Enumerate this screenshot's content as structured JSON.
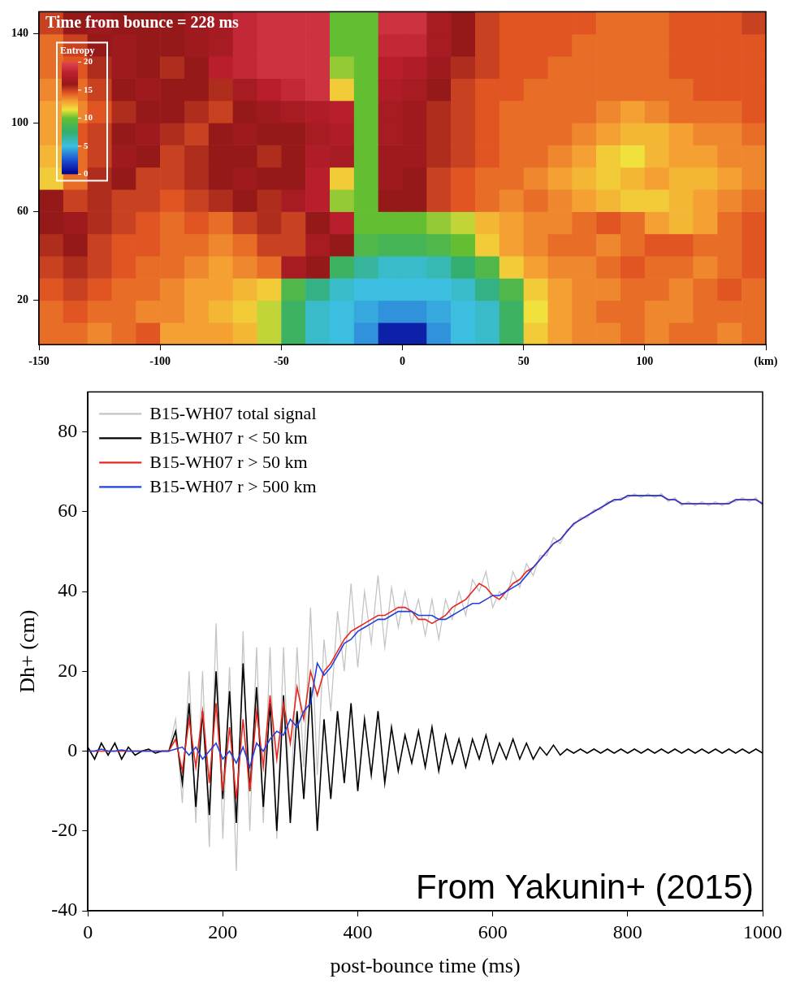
{
  "chart_data": [
    {
      "type": "heatmap",
      "annotations": [
        "Time from bounce = 228 ms"
      ],
      "xlim": [
        -150,
        150
      ],
      "xticks": [
        -150,
        -100,
        -50,
        0,
        50,
        100,
        {
          "value": 150,
          "label": "(km)"
        }
      ],
      "ylim": [
        0,
        150
      ],
      "yticks": [
        20,
        60,
        100,
        140
      ],
      "grid": false,
      "x_edges": [
        -150,
        -140,
        -130,
        -120,
        -110,
        -100,
        -90,
        -80,
        -70,
        -60,
        -50,
        -40,
        -30,
        -20,
        -10,
        0,
        10,
        20,
        30,
        40,
        50,
        60,
        70,
        80,
        90,
        100,
        110,
        120,
        130,
        140,
        150
      ],
      "y_edges": [
        0,
        10,
        20,
        30,
        40,
        50,
        60,
        70,
        80,
        90,
        100,
        110,
        120,
        130,
        140,
        150
      ],
      "cells": [
        [
          14,
          14,
          13.5,
          14,
          14.5,
          13,
          13,
          13,
          12.5,
          11,
          8,
          5.5,
          5,
          4,
          1,
          1,
          4,
          5,
          5.5,
          8,
          12,
          13,
          13.5,
          13.5,
          14,
          13.5,
          14,
          14,
          13.5,
          14
        ],
        [
          14,
          14.5,
          14,
          14,
          13.5,
          13.5,
          13,
          12.5,
          12,
          11,
          8,
          5.5,
          5,
          4.5,
          4,
          4,
          4.5,
          5,
          5.5,
          8,
          11.5,
          13,
          13.5,
          14,
          14,
          13.5,
          13.5,
          14,
          14,
          14
        ],
        [
          14.5,
          15,
          14.5,
          14,
          14,
          13.5,
          13,
          13,
          12.5,
          12,
          9,
          7,
          5.5,
          5,
          5,
          5,
          5,
          5.5,
          7,
          9,
          12,
          13,
          13.5,
          13.5,
          14,
          14,
          13.5,
          14,
          14.5,
          14
        ],
        [
          15,
          15.5,
          15,
          14.5,
          14,
          14,
          13.5,
          13,
          13.5,
          14,
          17,
          16,
          8,
          6.5,
          5.5,
          5.5,
          6,
          7.5,
          9,
          12,
          13,
          13.5,
          13.5,
          14,
          14.5,
          14,
          14,
          13.5,
          14,
          14.5
        ],
        [
          15.5,
          16,
          15,
          14.5,
          14.5,
          14,
          14,
          13.5,
          14,
          15,
          15,
          17,
          16,
          9,
          8.5,
          8.5,
          9,
          10,
          12,
          13,
          13.5,
          14,
          14,
          13.5,
          14,
          14.5,
          14.5,
          14,
          14,
          14.5
        ],
        [
          16,
          16.5,
          15.5,
          15,
          14.5,
          14,
          14.5,
          14,
          15,
          15.5,
          15,
          16,
          18,
          10,
          10,
          10,
          10.5,
          11,
          12.5,
          13,
          13.5,
          13.5,
          14,
          14.5,
          14,
          13,
          12.5,
          13,
          14,
          14.5
        ],
        [
          16,
          15,
          15.5,
          15,
          15,
          14.5,
          15,
          15.5,
          16,
          15.5,
          17,
          18,
          10.5,
          10,
          16,
          16,
          15,
          14.5,
          14,
          13.5,
          14,
          13.5,
          13,
          12.5,
          12,
          12,
          12.5,
          13,
          13.5,
          14
        ],
        [
          12,
          14,
          15.5,
          16,
          15,
          15,
          15.5,
          16,
          16.5,
          16,
          16,
          18,
          12,
          10,
          16.5,
          16,
          15,
          14.5,
          14,
          14,
          13.5,
          13,
          12.5,
          12,
          12.5,
          13,
          12.5,
          12.5,
          13,
          13.5
        ],
        [
          12.5,
          14,
          15,
          16.5,
          16,
          15,
          15.5,
          16,
          16,
          15.5,
          16,
          17.5,
          17,
          10,
          16.5,
          16.5,
          15.5,
          15,
          14.5,
          14,
          14,
          13.5,
          13,
          12,
          11.5,
          12.5,
          13,
          13,
          13.5,
          13.5
        ],
        [
          13,
          14.5,
          15,
          16,
          16.5,
          15.5,
          15,
          16,
          16.5,
          16,
          16,
          17,
          17.5,
          10,
          17,
          16.5,
          15.5,
          15,
          14.5,
          14,
          14,
          14,
          13.5,
          13,
          12.5,
          12.5,
          13,
          13.5,
          13.5,
          14
        ],
        [
          13,
          13.5,
          14.5,
          15.5,
          16,
          16,
          15.5,
          15,
          16,
          16.5,
          17,
          17.5,
          18,
          10,
          17,
          16.5,
          15.5,
          15,
          14.5,
          14,
          14,
          14,
          14,
          13.5,
          13,
          13.5,
          14,
          14,
          14,
          14.5
        ],
        [
          13.5,
          14,
          15,
          16,
          16.5,
          16,
          16,
          15.5,
          17,
          18,
          18.5,
          19,
          12,
          10,
          17.5,
          17,
          16,
          15,
          14.5,
          14.5,
          14,
          14,
          14,
          14,
          14,
          14,
          14,
          14.5,
          14.5,
          14.5
        ],
        [
          14,
          14.5,
          15.5,
          16.5,
          16,
          15.5,
          16,
          18,
          18.5,
          19,
          19,
          19,
          10.5,
          10,
          18,
          17.5,
          16.5,
          15.5,
          15,
          14.5,
          14.5,
          14,
          14,
          14,
          14,
          14,
          14.5,
          14.5,
          14.5,
          14.5
        ],
        [
          14,
          15,
          16,
          16.5,
          16,
          16,
          16.5,
          17,
          18.5,
          19,
          19,
          19,
          10,
          10,
          18.5,
          18.5,
          17,
          16,
          15,
          14.5,
          14.5,
          14.5,
          14,
          14,
          14,
          14,
          14.5,
          14.5,
          14.5,
          14.5
        ],
        [
          15,
          16,
          16.5,
          16,
          16,
          16,
          16.5,
          17,
          18.5,
          19,
          19,
          19,
          10,
          10,
          19,
          19,
          17,
          16,
          15,
          14.5,
          14.5,
          14.5,
          14.5,
          14,
          14,
          14,
          14.5,
          14.5,
          14.5,
          15
        ]
      ],
      "colorbar": {
        "label": "Entropy",
        "range": [
          0,
          20
        ],
        "ticks": [
          0,
          5,
          10,
          15,
          20
        ]
      }
    },
    {
      "type": "line",
      "xlabel": "post-bounce time (ms)",
      "ylabel": "Dh+ (cm)",
      "annotations": [
        "From Yakunin+ (2015)"
      ],
      "xlim": [
        0,
        1000
      ],
      "xticks": [
        0,
        200,
        400,
        600,
        800,
        1000
      ],
      "ylim": [
        -40,
        90
      ],
      "yticks": [
        -40,
        -20,
        0,
        20,
        40,
        60,
        80
      ],
      "grid": false,
      "legend": "top-left",
      "x": [
        0,
        10,
        20,
        30,
        40,
        50,
        60,
        70,
        80,
        90,
        100,
        110,
        120,
        130,
        140,
        150,
        160,
        170,
        180,
        190,
        200,
        210,
        220,
        230,
        240,
        250,
        260,
        270,
        280,
        290,
        300,
        310,
        320,
        330,
        340,
        350,
        360,
        370,
        380,
        390,
        400,
        410,
        420,
        430,
        440,
        450,
        460,
        470,
        480,
        490,
        500,
        510,
        520,
        530,
        540,
        550,
        560,
        570,
        580,
        590,
        600,
        610,
        620,
        630,
        640,
        650,
        660,
        670,
        680,
        690,
        700,
        710,
        720,
        730,
        740,
        750,
        760,
        770,
        780,
        790,
        800,
        810,
        820,
        830,
        840,
        850,
        860,
        870,
        880,
        890,
        900,
        910,
        920,
        930,
        940,
        950,
        960,
        970,
        980,
        990,
        1000
      ],
      "series": [
        {
          "name": "B15-WH07 total signal",
          "color": "#c4c4c4",
          "line_style": "solid",
          "values": [
            1,
            -2,
            2,
            -1,
            2,
            -2,
            1,
            -1,
            0,
            0.5,
            -0.5,
            0,
            0,
            8,
            -13,
            20,
            -18,
            20,
            -24,
            32,
            -22,
            21,
            -30,
            30,
            -20,
            26,
            -18,
            26,
            -22,
            26,
            -16,
            26,
            -4,
            36,
            -6,
            28,
            10,
            35,
            20,
            42,
            21,
            40,
            27,
            44,
            26,
            41,
            31,
            40,
            32,
            38,
            29,
            38,
            28,
            38,
            33,
            40,
            34,
            43,
            40,
            45,
            36,
            40,
            38,
            45,
            41,
            47,
            44,
            49,
            49,
            53.5,
            52,
            55.5,
            56.5,
            58.5,
            58.5,
            60.5,
            60.5,
            62.5,
            62.5,
            63.5,
            63.5,
            64.5,
            63.5,
            64.5,
            63.5,
            64.5,
            62.5,
            63.5,
            61.5,
            62.5,
            61.5,
            62.5,
            61.5,
            62.5,
            61.5,
            62.5,
            62.5,
            63.5,
            62.5,
            63.5,
            61.5
          ]
        },
        {
          "name": "B15-WH07 r < 50 km",
          "color": "#000000",
          "line_style": "solid",
          "values": [
            1,
            -2,
            2,
            -1,
            2,
            -2,
            1,
            -1,
            0,
            0.5,
            -0.5,
            0,
            0,
            5,
            -8,
            12,
            -14,
            10,
            -16,
            20,
            -12,
            15,
            -18,
            22,
            -10,
            16,
            -14,
            12,
            -20,
            14,
            -18,
            10,
            -12,
            16,
            -20,
            8,
            -12,
            10,
            -8,
            12,
            -10,
            8,
            -6,
            10,
            -8,
            6,
            -5,
            4,
            -3,
            5,
            -4,
            6,
            -5,
            4,
            -3,
            3,
            -4,
            3,
            -2,
            4,
            -3,
            2,
            -2,
            3,
            -2,
            2,
            -2,
            1,
            -1,
            1.5,
            -1,
            0.5,
            -0.5,
            0.5,
            -0.5,
            0.5,
            -0.5,
            0.5,
            -0.5,
            0.5,
            -0.5,
            0.5,
            -0.5,
            0.5,
            -0.5,
            0.5,
            -0.5,
            0.5,
            -0.5,
            0.5,
            -0.5,
            0.5,
            -0.5,
            0.5,
            -0.5,
            0.5,
            -0.5,
            0.5,
            -0.5,
            0.5,
            -0.5
          ]
        },
        {
          "name": "B15-WH07 r > 50 km",
          "color": "#e8261c",
          "line_style": "solid",
          "values": [
            0,
            0,
            0,
            0,
            0,
            0,
            0,
            0,
            0,
            0,
            0,
            0,
            0,
            3,
            -5,
            8,
            -4,
            10,
            -8,
            12,
            -10,
            6,
            -12,
            8,
            -10,
            10,
            -4,
            14,
            -2,
            12,
            2,
            16,
            8,
            20,
            14,
            20,
            22,
            25,
            28,
            30,
            31,
            32,
            33,
            34,
            34,
            35,
            36,
            36,
            35,
            33,
            33,
            32,
            33,
            34,
            36,
            37,
            38,
            40,
            42,
            41,
            39,
            38,
            40,
            42,
            43,
            45,
            46,
            48,
            50,
            52,
            53,
            55,
            57,
            58,
            59,
            60,
            61,
            62,
            63,
            63,
            64,
            64,
            64,
            64,
            64,
            64,
            63,
            63,
            62,
            62,
            62,
            62,
            62,
            62,
            62,
            62,
            63,
            63,
            63,
            63,
            62
          ]
        },
        {
          "name": "B15-WH07 r > 500 km",
          "color": "#2040e0",
          "line_style": "solid",
          "values": [
            0,
            0,
            0.5,
            0,
            0,
            0.3,
            0,
            0,
            0,
            0,
            0,
            0,
            0,
            0.5,
            1,
            -1,
            1,
            -2,
            0,
            2,
            -2,
            0,
            -3,
            1,
            -4,
            2,
            0,
            3,
            5,
            4,
            8,
            6,
            10,
            12,
            22,
            19,
            21,
            24,
            27,
            28,
            30,
            31,
            32,
            33,
            33,
            34,
            35,
            35,
            35,
            34,
            34,
            34,
            33,
            33,
            34,
            35,
            36,
            37,
            37,
            38,
            39,
            39,
            40,
            41,
            42,
            44,
            46,
            48,
            50,
            52,
            53,
            55,
            57,
            58,
            59,
            60,
            61,
            62,
            63,
            63,
            64,
            64,
            64,
            64,
            64,
            64,
            63,
            63,
            62,
            62,
            62,
            62,
            62,
            62,
            62,
            62,
            63,
            63,
            63,
            63,
            62
          ]
        }
      ]
    }
  ]
}
